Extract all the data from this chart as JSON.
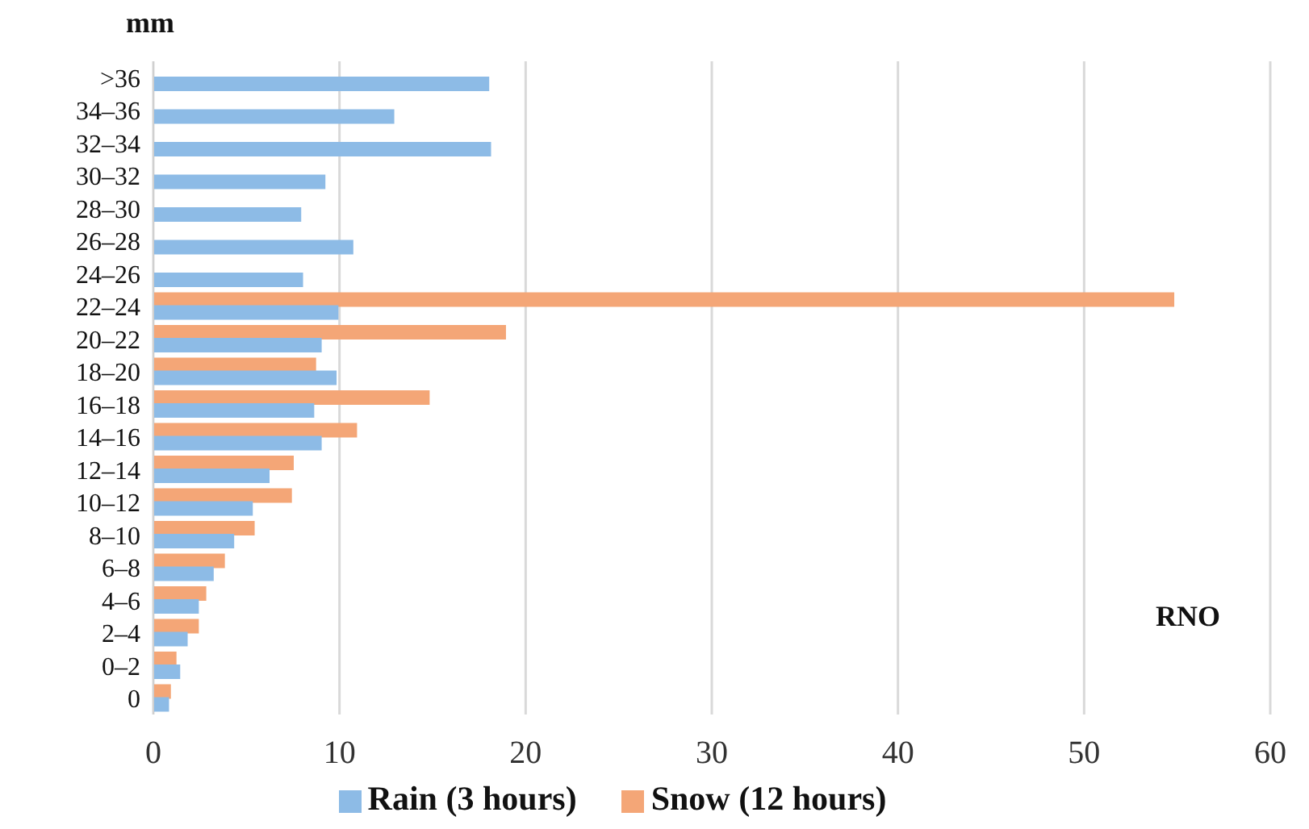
{
  "chart_data": {
    "type": "bar",
    "orientation": "horizontal",
    "ylabel": "mm",
    "categories": [
      ">36",
      "34–36",
      "32–34",
      "30–32",
      "28–30",
      "26–28",
      "24–26",
      "22–24",
      "20–22",
      "18–20",
      "16–18",
      "14–16",
      "12–14",
      "10–12",
      "8–10",
      "6–8",
      "4–6",
      "2–4",
      "0–2",
      "0"
    ],
    "series": [
      {
        "name": "Snow (12 hours)",
        "color": "#f4a677",
        "values": [
          null,
          null,
          null,
          null,
          null,
          null,
          null,
          54.8,
          18.9,
          8.7,
          14.8,
          10.9,
          7.5,
          7.4,
          5.4,
          3.8,
          2.8,
          2.4,
          1.2,
          0.9
        ]
      },
      {
        "name": "Rain (3 hours)",
        "color": "#8dbbe6",
        "values": [
          18.0,
          12.9,
          18.1,
          9.2,
          7.9,
          10.7,
          8.0,
          9.9,
          9.0,
          9.8,
          8.6,
          9.0,
          6.2,
          5.3,
          4.3,
          3.2,
          2.4,
          1.8,
          1.4,
          0.8
        ]
      }
    ],
    "xlim": [
      0,
      60
    ],
    "xticks": [
      0,
      10,
      20,
      30,
      40,
      50,
      60
    ],
    "grid": "x",
    "legend": "bottom",
    "annotations": [
      "RNO"
    ]
  }
}
